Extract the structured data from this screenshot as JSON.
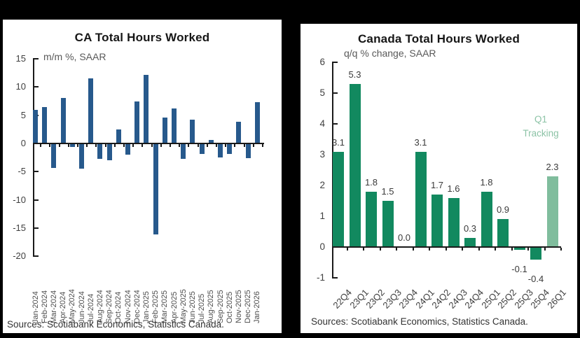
{
  "window": {
    "background": "#000000"
  },
  "chart_data": [
    {
      "id": "ca-total-hours-worked-monthly",
      "type": "bar",
      "title": "CA Total Hours Worked",
      "subtitle": "m/m %, SAAR",
      "source": "Sources: Scotiabank Economics, Statistics Canada.",
      "categories": [
        "Jan-2024",
        "Feb-2024",
        "Mar-2024",
        "Apr-2024",
        "May-2024",
        "Jun-2024",
        "Jul-2024",
        "Aug-2024",
        "Sep-2024",
        "Oct-2024",
        "Nov-2024",
        "Dec-2024",
        "Jan-2025",
        "Feb-2025",
        "Mar-2025",
        "Apr-2025",
        "May-2025",
        "Jun-2025",
        "Jul-2025",
        "Aug-2025",
        "Sep-2025",
        "Oct-2025",
        "Nov-2025",
        "Dec-2025",
        "Jan-2026"
      ],
      "values": [
        5.9,
        6.4,
        -4.3,
        8.1,
        -0.6,
        -4.5,
        11.5,
        -2.7,
        -3.0,
        2.5,
        -2.0,
        7.4,
        12.2,
        -16.1,
        4.6,
        6.2,
        -2.7,
        4.2,
        -1.9,
        0.6,
        -2.5,
        -1.8,
        3.9,
        -2.6,
        7.3
      ],
      "ylim": [
        -20,
        15
      ],
      "yticks": [
        15,
        10,
        5,
        0,
        -5,
        -10,
        -15,
        -20
      ],
      "bar_color": "#27598C",
      "grid": false,
      "legend": "none",
      "xlabel_rotation": 90
    },
    {
      "id": "canada-total-hours-worked-quarterly",
      "type": "bar",
      "title": "Canada Total Hours Worked",
      "subtitle": "q/q % change, SAAR",
      "source": "Sources: Scotiabank Economics, Statistics Canada.",
      "categories": [
        "22Q4",
        "23Q1",
        "23Q2",
        "23Q3",
        "23Q4",
        "24Q1",
        "24Q2",
        "24Q3",
        "24Q4",
        "25Q1",
        "25Q2",
        "25Q3",
        "25Q4",
        "26Q1"
      ],
      "values": [
        3.1,
        5.3,
        1.8,
        1.5,
        0.0,
        3.1,
        1.7,
        1.6,
        0.3,
        1.8,
        0.9,
        -0.1,
        -0.4,
        2.3
      ],
      "data_labels": [
        "3.1",
        "5.3",
        "1.8",
        "1.5",
        "0.0",
        "3.1",
        "1.7",
        "1.6",
        "0.3",
        "1.8",
        "0.9",
        "-0.1",
        "-0.4",
        "2.3"
      ],
      "ylim": [
        -1,
        6
      ],
      "yticks": [
        6,
        5,
        4,
        3,
        2,
        1,
        0,
        -1
      ],
      "bar_color": "#12895F",
      "highlight_bar_color": "#80BD9D",
      "highlight_index": 13,
      "annotation": {
        "line1": "Q1",
        "line2": "Tracking",
        "color": "#8CC3A6"
      },
      "grid": false,
      "legend": "none",
      "xlabel_rotation": 45
    }
  ]
}
